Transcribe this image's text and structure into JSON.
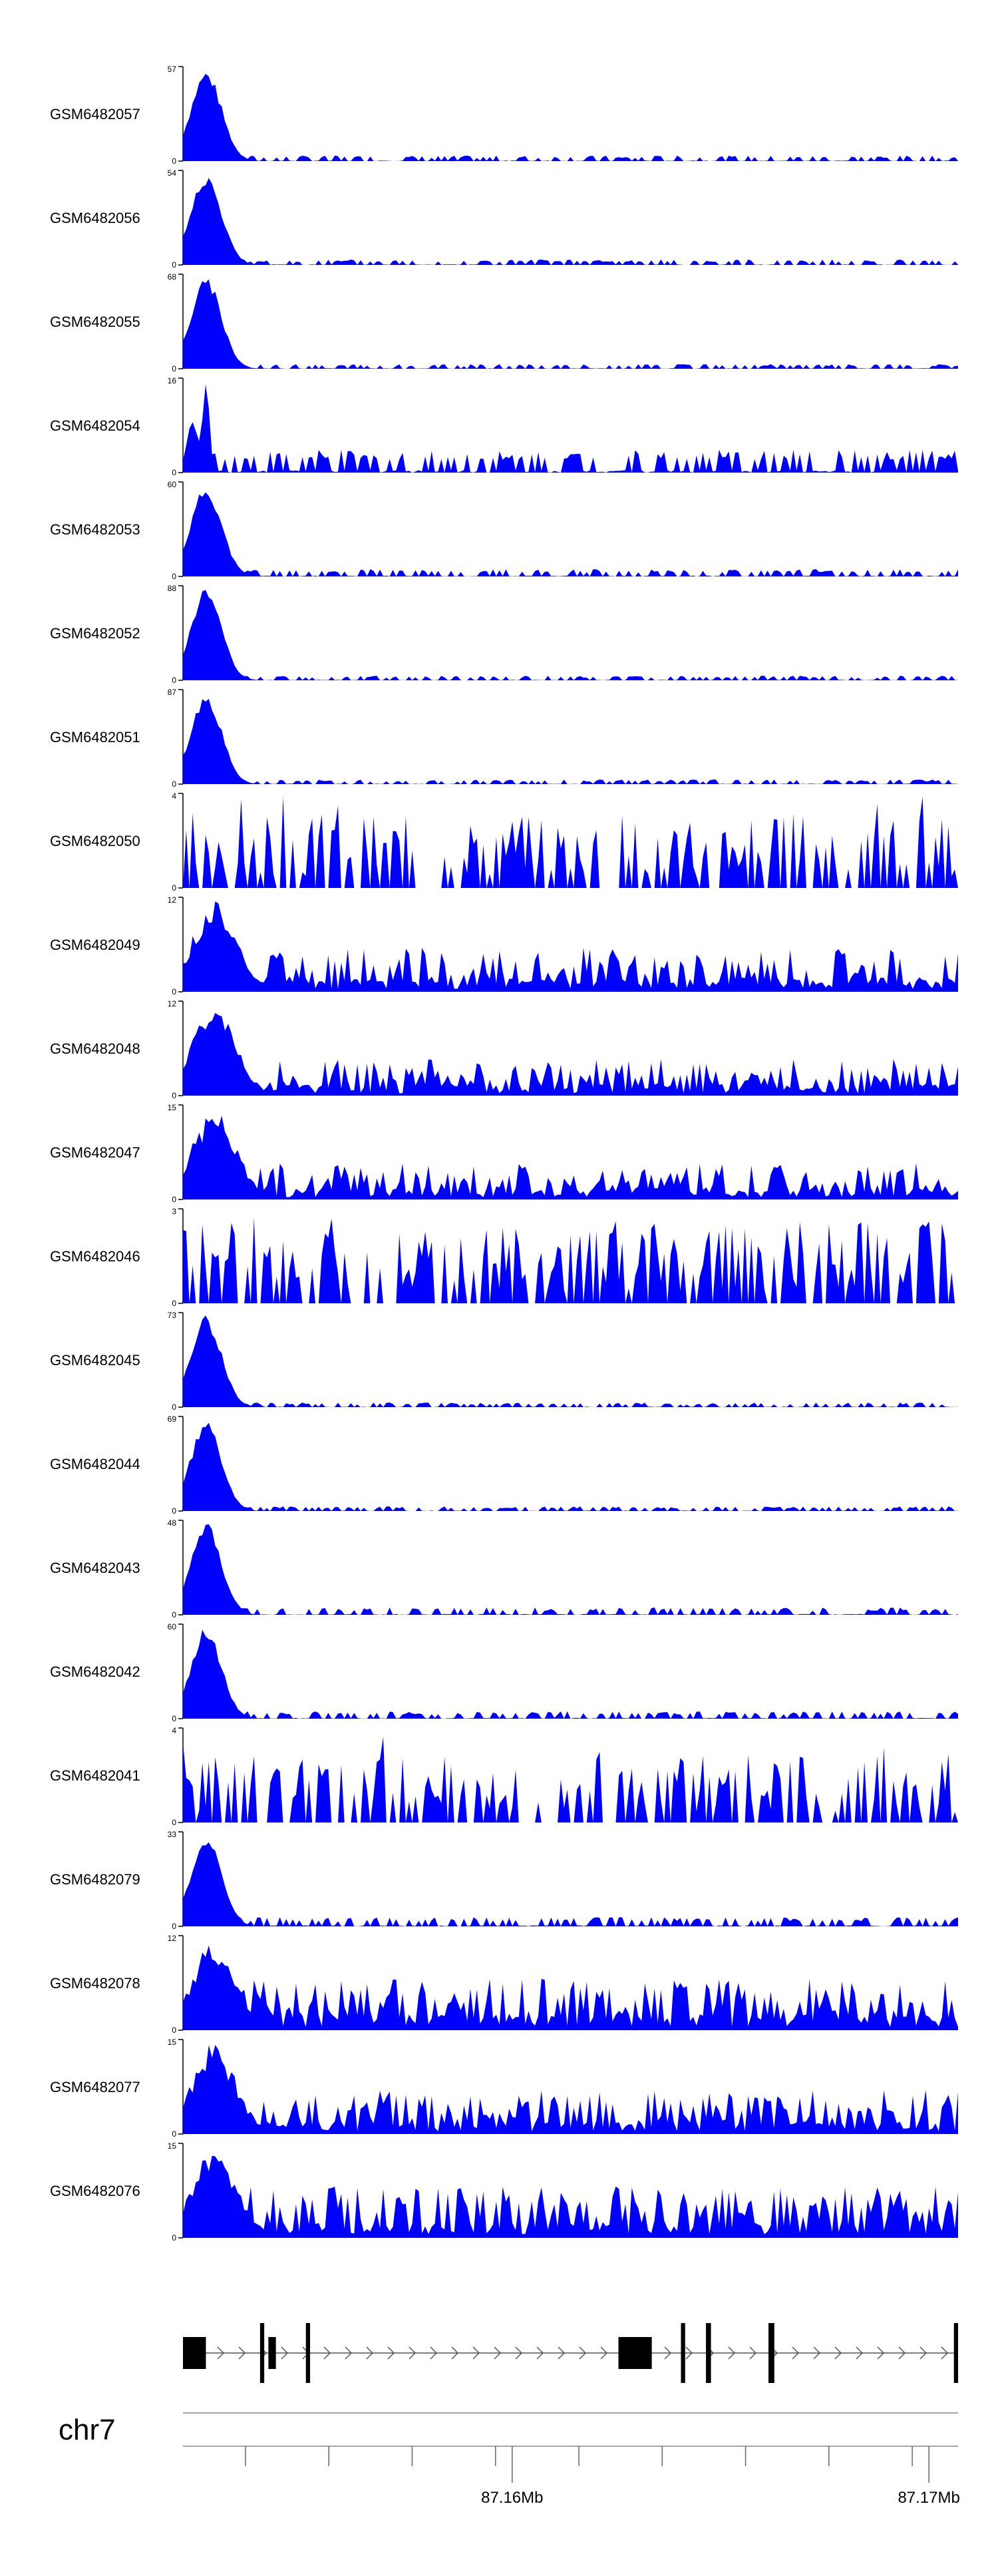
{
  "chart_data": {
    "type": "area",
    "title": "",
    "chromosome": "chr7",
    "fill_color": "#0000ff",
    "axis_color": "#000000",
    "tracks": [
      {
        "name": "GSM6482057",
        "ymax": 57,
        "profile": "peak",
        "base": 0.06
      },
      {
        "name": "GSM6482056",
        "ymax": 54,
        "profile": "peak",
        "base": 0.06
      },
      {
        "name": "GSM6482055",
        "ymax": 68,
        "profile": "peak",
        "base": 0.05
      },
      {
        "name": "GSM6482054",
        "ymax": 16,
        "profile": "spikes",
        "base": 0.25
      },
      {
        "name": "GSM6482053",
        "ymax": 60,
        "profile": "peak",
        "base": 0.08
      },
      {
        "name": "GSM6482052",
        "ymax": 88,
        "profile": "peak",
        "base": 0.05
      },
      {
        "name": "GSM6482051",
        "ymax": 87,
        "profile": "peak",
        "base": 0.05
      },
      {
        "name": "GSM6482050",
        "ymax": 4,
        "profile": "noise",
        "base": 0.5
      },
      {
        "name": "GSM6482049",
        "ymax": 12,
        "profile": "noisy-peak",
        "base": 0.3
      },
      {
        "name": "GSM6482048",
        "ymax": 12,
        "profile": "noisy-peak",
        "base": 0.25
      },
      {
        "name": "GSM6482047",
        "ymax": 15,
        "profile": "noisy-peak",
        "base": 0.25
      },
      {
        "name": "GSM6482046",
        "ymax": 3,
        "profile": "noise",
        "base": 0.6
      },
      {
        "name": "GSM6482045",
        "ymax": 73,
        "profile": "peak",
        "base": 0.05
      },
      {
        "name": "GSM6482044",
        "ymax": 69,
        "profile": "peak",
        "base": 0.05
      },
      {
        "name": "GSM6482043",
        "ymax": 48,
        "profile": "peak",
        "base": 0.08
      },
      {
        "name": "GSM6482042",
        "ymax": 60,
        "profile": "peak",
        "base": 0.08
      },
      {
        "name": "GSM6482041",
        "ymax": 4,
        "profile": "noise",
        "base": 0.45
      },
      {
        "name": "GSM6482079",
        "ymax": 33,
        "profile": "peak",
        "base": 0.1
      },
      {
        "name": "GSM6482078",
        "ymax": 12,
        "profile": "noisy-peak",
        "base": 0.35
      },
      {
        "name": "GSM6482077",
        "ymax": 15,
        "profile": "noisy-peak",
        "base": 0.3
      },
      {
        "name": "GSM6482076",
        "ymax": 15,
        "profile": "noisy-peak",
        "base": 0.35
      }
    ],
    "x_axis": {
      "unit": "Mb",
      "range": [
        87.1521,
        87.1707
      ],
      "minor_ticks": [
        87.1536,
        87.1556,
        87.1576,
        87.1596,
        87.1616,
        87.1636,
        87.1656,
        87.1676,
        87.1696
      ],
      "major_ticks": [
        {
          "value": 87.16,
          "label": "87.16Mb"
        },
        {
          "value": 87.17,
          "label": "87.17Mb"
        }
      ]
    },
    "gene": {
      "strand": "+",
      "exons": [
        [
          87.1521,
          87.15265
        ],
        [
          87.15395,
          87.15405
        ],
        [
          87.15415,
          87.15433
        ],
        [
          87.15505,
          87.15515
        ],
        [
          87.16255,
          87.16335
        ],
        [
          87.16405,
          87.16415
        ],
        [
          87.16465,
          87.16477
        ],
        [
          87.16615,
          87.16629
        ],
        [
          87.1706,
          87.1707
        ]
      ]
    }
  }
}
